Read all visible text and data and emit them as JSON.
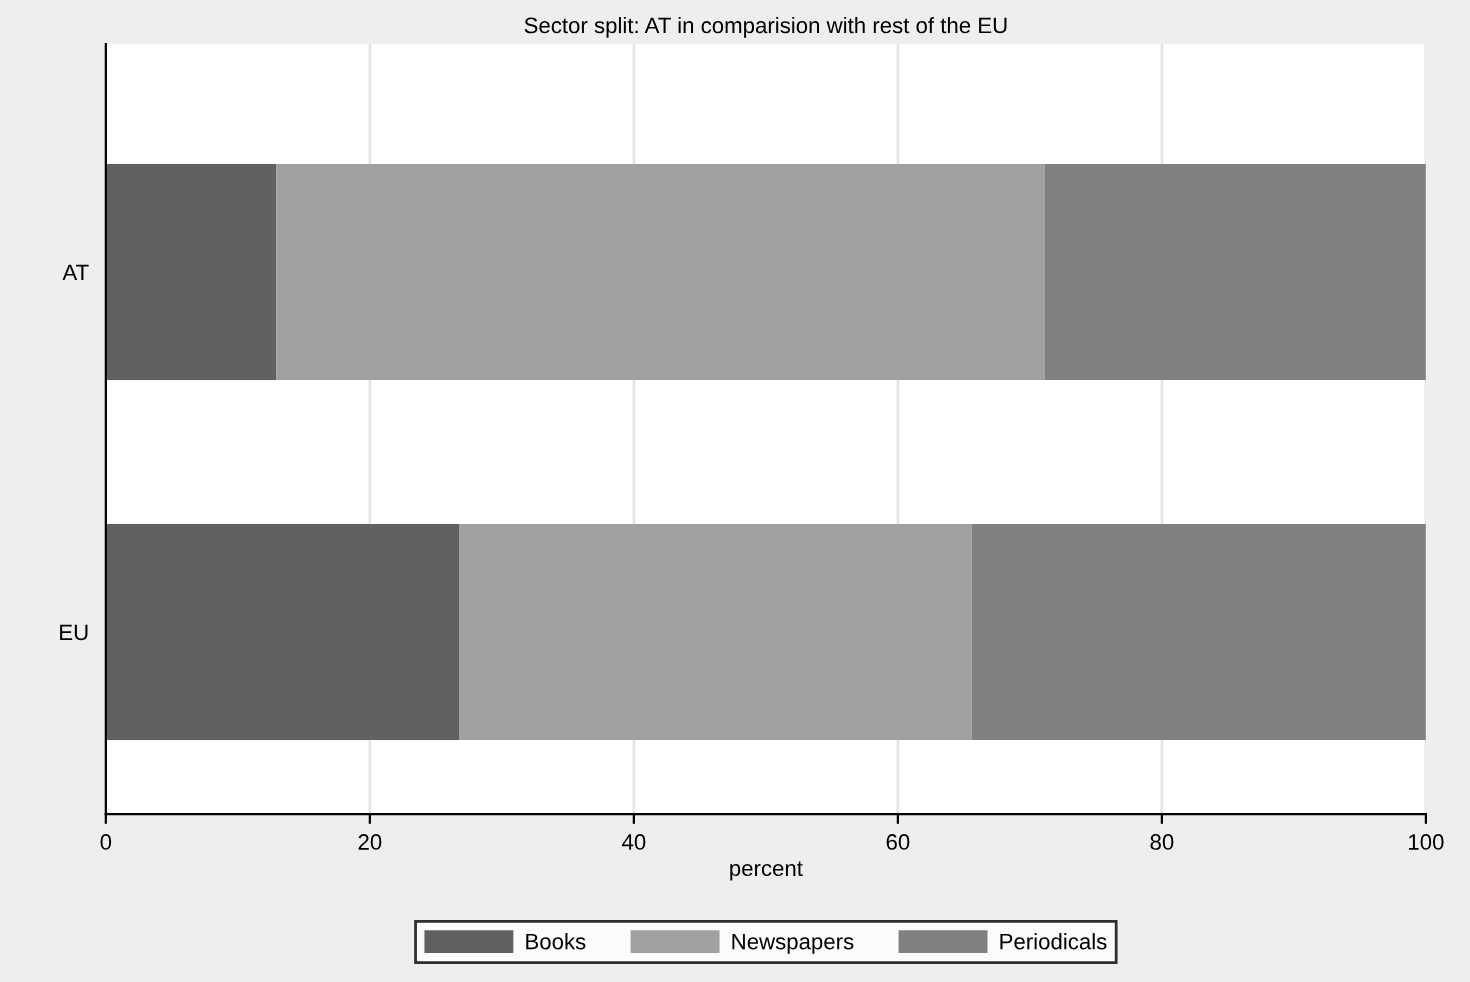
{
  "chart_data": {
    "type": "bar",
    "orientation": "horizontal",
    "stacked": true,
    "title": "Sector split: AT in comparision with rest of the EU",
    "xlabel": "percent",
    "categories": [
      "AT",
      "EU"
    ],
    "series": [
      {
        "name": "Books",
        "color": "#606060",
        "values": [
          12.9,
          26.8
        ]
      },
      {
        "name": "Newspapers",
        "color": "#a0a0a0",
        "values": [
          58.2,
          38.8
        ]
      },
      {
        "name": "Periodicals",
        "color": "#808080",
        "values": [
          28.9,
          34.4
        ]
      }
    ],
    "xlim": [
      0,
      100
    ],
    "xticks": [
      0,
      20,
      40,
      60,
      80,
      100
    ],
    "grid": "x",
    "legend": "bottom"
  }
}
